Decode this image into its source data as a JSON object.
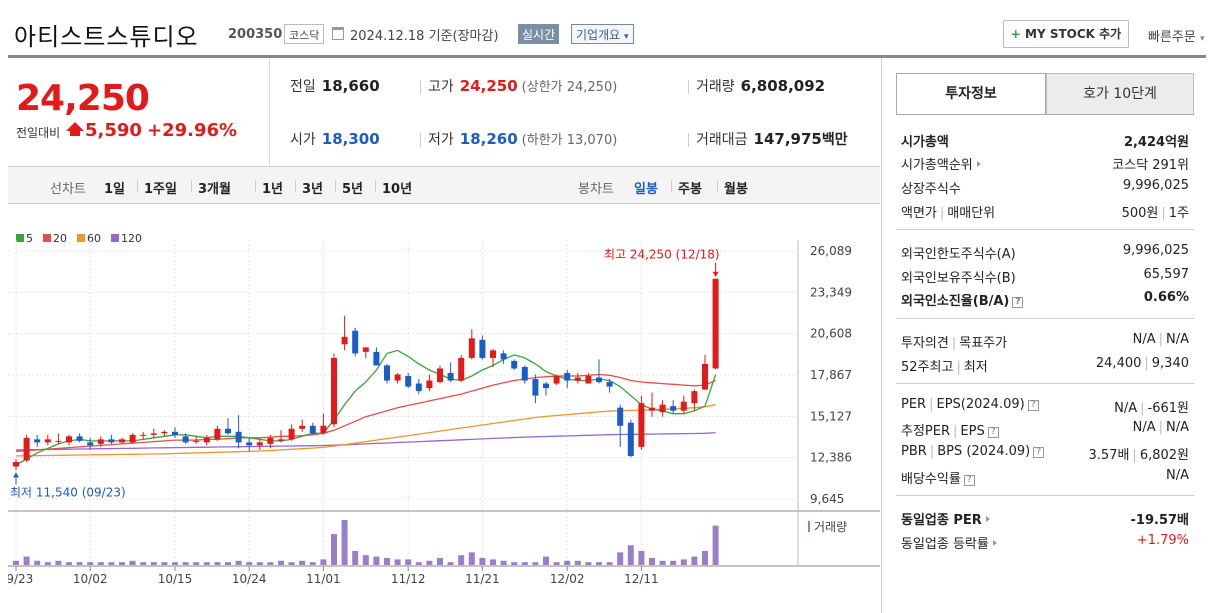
{
  "header": {
    "company": "아티스트스튜디오",
    "code": "200350",
    "market": "코스닥",
    "date": "2024.12.18",
    "basis": "기준(장마감)",
    "realtime": "실시간",
    "overview": "기업개요",
    "mystock_label": "MY STOCK 추가",
    "quick_order": "빠른주문"
  },
  "price": {
    "current": "24,250",
    "change_label": "전일대비",
    "change": "5,590",
    "change_pct": "+29.96%"
  },
  "summary": {
    "prev_label": "전일",
    "prev": "18,660",
    "high_label": "고가",
    "high": "24,250",
    "upper_limit": "(상한가 24,250)",
    "volume_label": "거래량",
    "volume": "6,808,092",
    "open_label": "시가",
    "open": "18,300",
    "low_label": "저가",
    "low": "18,260",
    "lower_limit": "(하한가 13,070)",
    "amount_label": "거래대금",
    "amount": "147,975",
    "amount_unit": "백만"
  },
  "period": {
    "line_label": "선차트",
    "line_items": [
      "1일",
      "1주일",
      "3개월",
      "1년",
      "3년",
      "5년",
      "10년"
    ],
    "candle_label": "봉차트",
    "candle_items": [
      "일봉",
      "주봉",
      "월봉"
    ]
  },
  "colors": {
    "up": "#e21a1a",
    "down": "#1a5cc8",
    "ma5": "#3aa63a",
    "ma20": "#e84c4c",
    "ma60": "#f0952b",
    "ma120": "#9a66cc",
    "volume": "#9a7fc8"
  },
  "chart_data": {
    "type": "candlestick",
    "legend": [
      "5",
      "20",
      "60",
      "120"
    ],
    "yticks": [
      "26,089",
      "23,349",
      "20,608",
      "17,867",
      "15,127",
      "12,386",
      "9,645"
    ],
    "ylim": [
      9645,
      26089
    ],
    "xticks": [
      "09/23",
      "10/02",
      "10/15",
      "10/24",
      "11/01",
      "11/12",
      "11/21",
      "12/02",
      "12/11"
    ],
    "xtick_index": [
      0,
      7,
      15,
      22,
      29,
      37,
      44,
      52,
      59
    ],
    "max_annotation": "최고 24,250 (12/18)",
    "min_annotation": "최저 11,540 (09/23)",
    "volume_label": "거래량",
    "candles": [
      {
        "o": 11800,
        "h": 12300,
        "l": 11540,
        "c": 12100
      },
      {
        "o": 12200,
        "h": 13900,
        "l": 12100,
        "c": 13700
      },
      {
        "o": 13600,
        "h": 13900,
        "l": 13100,
        "c": 13400
      },
      {
        "o": 13400,
        "h": 13900,
        "l": 13200,
        "c": 13600
      },
      {
        "o": 13500,
        "h": 14000,
        "l": 13300,
        "c": 13500
      },
      {
        "o": 13400,
        "h": 13900,
        "l": 13200,
        "c": 13800
      },
      {
        "o": 13800,
        "h": 14000,
        "l": 13400,
        "c": 13500
      },
      {
        "o": 13400,
        "h": 13700,
        "l": 12900,
        "c": 13200
      },
      {
        "o": 13300,
        "h": 13800,
        "l": 13100,
        "c": 13600
      },
      {
        "o": 13600,
        "h": 13900,
        "l": 13300,
        "c": 13400
      },
      {
        "o": 13400,
        "h": 13700,
        "l": 13300,
        "c": 13600
      },
      {
        "o": 13400,
        "h": 14000,
        "l": 13300,
        "c": 13900
      },
      {
        "o": 13900,
        "h": 14100,
        "l": 13600,
        "c": 13900
      },
      {
        "o": 13900,
        "h": 14300,
        "l": 13700,
        "c": 14000
      },
      {
        "o": 14000,
        "h": 14200,
        "l": 13800,
        "c": 14100
      },
      {
        "o": 14100,
        "h": 14400,
        "l": 13700,
        "c": 13900
      },
      {
        "o": 13800,
        "h": 14000,
        "l": 13300,
        "c": 13400
      },
      {
        "o": 13500,
        "h": 13800,
        "l": 13300,
        "c": 13500
      },
      {
        "o": 13400,
        "h": 13900,
        "l": 13200,
        "c": 13700
      },
      {
        "o": 13600,
        "h": 14500,
        "l": 13500,
        "c": 14300
      },
      {
        "o": 14300,
        "h": 15000,
        "l": 13900,
        "c": 14000
      },
      {
        "o": 14100,
        "h": 15200,
        "l": 13000,
        "c": 13400
      },
      {
        "o": 13400,
        "h": 13700,
        "l": 12800,
        "c": 13200
      },
      {
        "o": 13200,
        "h": 13600,
        "l": 12900,
        "c": 13400
      },
      {
        "o": 13300,
        "h": 13900,
        "l": 13000,
        "c": 13700
      },
      {
        "o": 13500,
        "h": 14200,
        "l": 13400,
        "c": 13600
      },
      {
        "o": 13600,
        "h": 14600,
        "l": 13500,
        "c": 14300
      },
      {
        "o": 14300,
        "h": 14900,
        "l": 14100,
        "c": 14500
      },
      {
        "o": 14500,
        "h": 14700,
        "l": 13900,
        "c": 14000
      },
      {
        "o": 14000,
        "h": 15300,
        "l": 13900,
        "c": 14500
      },
      {
        "o": 14600,
        "h": 19300,
        "l": 14400,
        "c": 19000
      },
      {
        "o": 19900,
        "h": 21800,
        "l": 19500,
        "c": 20400
      },
      {
        "o": 20800,
        "h": 21000,
        "l": 19100,
        "c": 19300
      },
      {
        "o": 19400,
        "h": 19700,
        "l": 19000,
        "c": 19700
      },
      {
        "o": 19400,
        "h": 19700,
        "l": 18500,
        "c": 18500
      },
      {
        "o": 18500,
        "h": 18600,
        "l": 17300,
        "c": 17500
      },
      {
        "o": 17500,
        "h": 18000,
        "l": 17300,
        "c": 17900
      },
      {
        "o": 17800,
        "h": 18000,
        "l": 17000,
        "c": 17100
      },
      {
        "o": 17300,
        "h": 17600,
        "l": 16600,
        "c": 16800
      },
      {
        "o": 17000,
        "h": 17900,
        "l": 16800,
        "c": 17500
      },
      {
        "o": 17400,
        "h": 18500,
        "l": 17300,
        "c": 18300
      },
      {
        "o": 18000,
        "h": 18700,
        "l": 17400,
        "c": 17500
      },
      {
        "o": 17500,
        "h": 19200,
        "l": 17400,
        "c": 19000
      },
      {
        "o": 19000,
        "h": 20900,
        "l": 18900,
        "c": 20300
      },
      {
        "o": 20200,
        "h": 20500,
        "l": 18900,
        "c": 19000
      },
      {
        "o": 19000,
        "h": 19600,
        "l": 18400,
        "c": 19500
      },
      {
        "o": 19300,
        "h": 19500,
        "l": 18600,
        "c": 18900
      },
      {
        "o": 18800,
        "h": 18900,
        "l": 18200,
        "c": 18300
      },
      {
        "o": 18400,
        "h": 18500,
        "l": 17300,
        "c": 17500
      },
      {
        "o": 17600,
        "h": 17900,
        "l": 16000,
        "c": 16500
      },
      {
        "o": 17300,
        "h": 17400,
        "l": 16500,
        "c": 17000
      },
      {
        "o": 17300,
        "h": 17900,
        "l": 17200,
        "c": 17800
      },
      {
        "o": 18000,
        "h": 18200,
        "l": 17000,
        "c": 17500
      },
      {
        "o": 17500,
        "h": 18000,
        "l": 17300,
        "c": 17700
      },
      {
        "o": 17300,
        "h": 18000,
        "l": 17300,
        "c": 17800
      },
      {
        "o": 17700,
        "h": 18900,
        "l": 17300,
        "c": 17400
      },
      {
        "o": 17400,
        "h": 17600,
        "l": 16700,
        "c": 17100
      },
      {
        "o": 15700,
        "h": 15900,
        "l": 13100,
        "c": 14500
      },
      {
        "o": 14700,
        "h": 14900,
        "l": 12400,
        "c": 12500
      },
      {
        "o": 13100,
        "h": 16500,
        "l": 12900,
        "c": 16000
      },
      {
        "o": 15500,
        "h": 16700,
        "l": 15100,
        "c": 15700
      },
      {
        "o": 15400,
        "h": 16200,
        "l": 15100,
        "c": 15900
      },
      {
        "o": 15800,
        "h": 16200,
        "l": 15300,
        "c": 15500
      },
      {
        "o": 15500,
        "h": 16500,
        "l": 15300,
        "c": 16100
      },
      {
        "o": 16000,
        "h": 16900,
        "l": 15500,
        "c": 16800
      },
      {
        "o": 16900,
        "h": 19200,
        "l": 16900,
        "c": 18600
      },
      {
        "o": 18300,
        "h": 24250,
        "l": 18260,
        "c": 24250
      }
    ],
    "ma5": [
      11900,
      12300,
      12700,
      13000,
      13300,
      13500,
      13600,
      13500,
      13500,
      13500,
      13500,
      13500,
      13600,
      13700,
      13800,
      13900,
      13900,
      13800,
      13700,
      13800,
      13800,
      13800,
      13700,
      13600,
      13500,
      13500,
      13600,
      13800,
      14000,
      14000,
      14900,
      15900,
      16800,
      17400,
      18200,
      19300,
      19500,
      19100,
      18600,
      18200,
      17900,
      17600,
      17500,
      17800,
      18200,
      18500,
      18900,
      19200,
      19000,
      18600,
      18100,
      17800,
      17600,
      17500,
      17500,
      17600,
      17500,
      17100,
      16500,
      15900,
      15600,
      15500,
      15300,
      15300,
      15500,
      15800,
      17900
    ],
    "ma20": [
      12800,
      12850,
      12900,
      12950,
      13000,
      13050,
      13100,
      13150,
      13200,
      13250,
      13300,
      13350,
      13400,
      13450,
      13500,
      13550,
      13550,
      13550,
      13600,
      13600,
      13650,
      13700,
      13700,
      13700,
      13750,
      13800,
      13800,
      13850,
      13900,
      14000,
      14200,
      14500,
      14800,
      15100,
      15300,
      15500,
      15700,
      15850,
      16000,
      16150,
      16300,
      16450,
      16600,
      16800,
      17000,
      17200,
      17350,
      17500,
      17600,
      17700,
      17750,
      17800,
      17800,
      17800,
      17850,
      17900,
      17850,
      17700,
      17500,
      17400,
      17350,
      17300,
      17250,
      17200,
      17150,
      17200,
      17500
    ],
    "ma60": [
      12500,
      12510,
      12520,
      12530,
      12540,
      12550,
      12560,
      12570,
      12580,
      12590,
      12600,
      12610,
      12620,
      12630,
      12640,
      12660,
      12680,
      12700,
      12720,
      12740,
      12760,
      12780,
      12800,
      12830,
      12860,
      12900,
      12940,
      12980,
      13020,
      13070,
      13150,
      13250,
      13350,
      13450,
      13550,
      13650,
      13750,
      13850,
      13950,
      14050,
      14150,
      14250,
      14350,
      14450,
      14550,
      14650,
      14750,
      14850,
      14950,
      15050,
      15120,
      15180,
      15240,
      15300,
      15360,
      15420,
      15470,
      15500,
      15520,
      15540,
      15560,
      15590,
      15620,
      15660,
      15700,
      15760,
      15900
    ],
    "ma120": [
      12900,
      12910,
      12920,
      12930,
      12940,
      12950,
      12960,
      12970,
      12980,
      12990,
      13000,
      13010,
      13020,
      13030,
      13040,
      13050,
      13060,
      13070,
      13080,
      13090,
      13100,
      13110,
      13120,
      13130,
      13140,
      13150,
      13160,
      13170,
      13180,
      13190,
      13210,
      13240,
      13270,
      13300,
      13330,
      13360,
      13390,
      13420,
      13450,
      13480,
      13510,
      13540,
      13570,
      13600,
      13630,
      13660,
      13690,
      13720,
      13750,
      13770,
      13790,
      13810,
      13830,
      13850,
      13870,
      13890,
      13910,
      13920,
      13930,
      13940,
      13950,
      13960,
      13970,
      13980,
      13990,
      14000,
      14050
    ],
    "volume": [
      3,
      6,
      3,
      2,
      3,
      2,
      2,
      2,
      2,
      2,
      2,
      3,
      2,
      2,
      2,
      2,
      2,
      2,
      2,
      2,
      2,
      3,
      2,
      2,
      2,
      3,
      2,
      3,
      2,
      4,
      22,
      32,
      10,
      7,
      6,
      5,
      4,
      4,
      2,
      3,
      5,
      2,
      7,
      9,
      5,
      4,
      3,
      2,
      2,
      2,
      6,
      2,
      3,
      3,
      2,
      2,
      2,
      9,
      14,
      10,
      5,
      3,
      3,
      4,
      6,
      10,
      28
    ]
  },
  "info": {
    "tab1": "투자정보",
    "tab2": "호가 10단계",
    "rows1": [
      {
        "k": "시가총액",
        "v": "2,424억원"
      },
      {
        "k": "시가총액순위",
        "v": "코스닥 291위"
      },
      {
        "k": "상장주식수",
        "v": "9,996,025"
      },
      {
        "k1": "액면가",
        "k2": "매매단위",
        "v1": "500원",
        "v2": "1주"
      }
    ],
    "rows2": [
      {
        "k": "외국인한도주식수(A)",
        "v": "9,996,025"
      },
      {
        "k": "외국인보유주식수(B)",
        "v": "65,597"
      },
      {
        "k": "외국인소진율(B/A)",
        "v": "0.66%"
      }
    ],
    "rows3": [
      {
        "k1": "투자의견",
        "k2": "목표주가",
        "v1": "N/A",
        "v2": "N/A"
      },
      {
        "k1": "52주최고",
        "k2": "최저",
        "v1": "24,400",
        "v2": "9,340"
      }
    ],
    "rows4": [
      {
        "k1": "PER",
        "k2": "EPS(2024.09)",
        "v1": "N/A",
        "v2": "-661원"
      },
      {
        "k1": "추정PER",
        "k2": "EPS",
        "v1": "N/A",
        "v2": "N/A"
      },
      {
        "k1": "PBR",
        "k2": "BPS (2024.09)",
        "v1": "3.57배",
        "v2": "6,802원"
      },
      {
        "k": "배당수익률",
        "v": "N/A"
      }
    ],
    "rows5": [
      {
        "k": "동일업종 PER",
        "v": "-19.57배"
      },
      {
        "k": "동일업종 등락률",
        "v": "+1.79%"
      }
    ]
  }
}
